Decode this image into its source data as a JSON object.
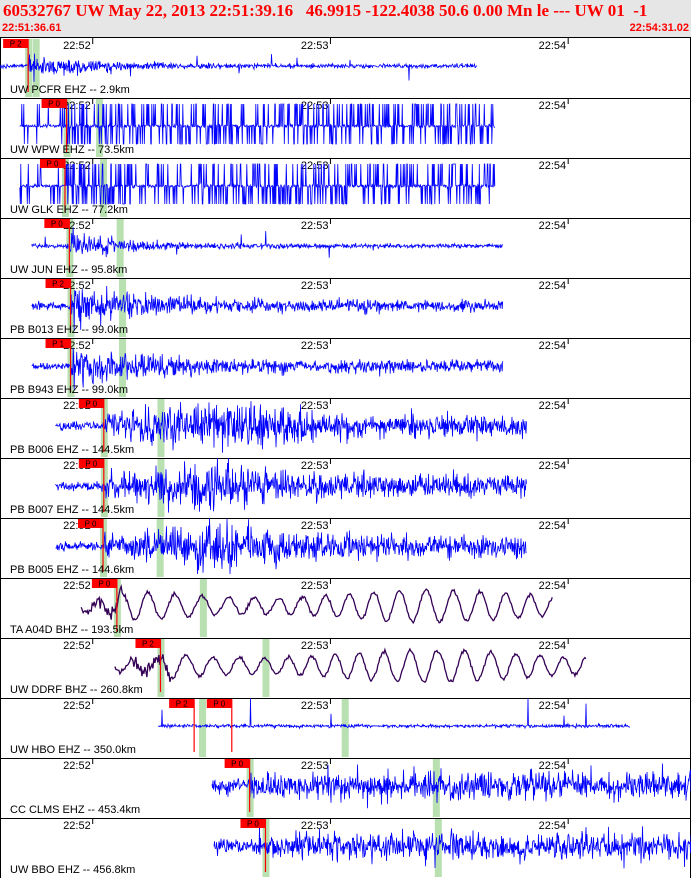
{
  "header": {
    "title": "60532767 UW May 22, 2013 22:51:39.16   46.9915 -122.4038 50.6 0.00 Mn le --- UW 01  -1",
    "start_time": "22:51:36.61",
    "end_time": "22:54:31.02"
  },
  "colors": {
    "header_text": "#ff0000",
    "trace_default": "#0000ff",
    "trace_broadband": "#330055",
    "pick": "#ff0000",
    "predicted": "#b8e0b0"
  },
  "chart_data": {
    "type": "line",
    "title": "60532767 UW May 22, 2013 22:51:39.16   46.9915 -122.4038 50.6 0.00 Mn le --- UW 01  -1",
    "x_range_seconds": [
      0,
      174.4
    ],
    "time_ticks": [
      {
        "label": "22:52",
        "t": 23.4
      },
      {
        "label": "22:53",
        "t": 83.4
      },
      {
        "label": "22:54",
        "t": 143.4
      }
    ],
    "series": [
      {
        "name": "UW PCFR EHZ -- 2.9km",
        "trace_start": 0,
        "trace_end": 120.5,
        "p": 7.1,
        "s": 9.0,
        "pick_labels": [
          "P 2"
        ],
        "style": "spiky",
        "seed": 11
      },
      {
        "name": "UW WPW EHZ -- 73.5km",
        "trace_start": 5,
        "trace_end": 125,
        "p": 16.8,
        "s": 25.0,
        "pick_labels": [
          "P 0"
        ],
        "style": "clipped",
        "seed": 23
      },
      {
        "name": "UW GLK EHZ -- 77.2km",
        "trace_start": 5,
        "trace_end": 125,
        "p": 16.4,
        "s": 26.0,
        "pick_labels": [
          "P 0"
        ],
        "style": "clipped",
        "seed": 37
      },
      {
        "name": "UW JUN EHZ -- 95.8km",
        "trace_start": 8,
        "trace_end": 127,
        "p": 17.5,
        "s": 30.2,
        "pick_labels": [
          "P 0"
        ],
        "style": "spiky",
        "seed": 41
      },
      {
        "name": "PB B013 EHZ -- 99.0km",
        "trace_start": 8,
        "trace_end": 127,
        "p": 17.8,
        "s": 30.8,
        "pick_labels": [
          "P 2"
        ],
        "style": "burst",
        "seed": 53
      },
      {
        "name": "PB B943 EHZ -- 99.0km",
        "trace_start": 8,
        "trace_end": 127,
        "p": 17.8,
        "s": 30.8,
        "pick_labels": [
          "P 1"
        ],
        "style": "burst",
        "seed": 67
      },
      {
        "name": "PB B006 EHZ -- 144.5km",
        "trace_start": 14,
        "trace_end": 133,
        "p": 26.2,
        "s": 40.5,
        "pick_labels": [
          "P 0"
        ],
        "style": "noisy",
        "seed": 71
      },
      {
        "name": "PB B007 EHZ -- 144.5km",
        "trace_start": 14,
        "trace_end": 133,
        "p": 26.2,
        "s": 40.5,
        "pick_labels": [
          "P 0"
        ],
        "style": "noisy",
        "seed": 83
      },
      {
        "name": "PB B005 EHZ -- 144.6km",
        "trace_start": 14,
        "trace_end": 133,
        "p": 26.0,
        "s": 40.3,
        "pick_labels": [
          "P 0"
        ],
        "style": "noisy",
        "seed": 97
      },
      {
        "name": "TA A04D BHZ -- 193.5km",
        "trace_start": 20.5,
        "trace_end": 139.5,
        "p": 29.5,
        "s": 51.2,
        "pick_labels": [
          "P 0"
        ],
        "style": "wave",
        "seed": 101
      },
      {
        "name": "UW DDRF BHZ -- 260.8km",
        "trace_start": 29,
        "trace_end": 148,
        "p": 40.5,
        "s": 67.0,
        "pick_labels": [
          "P 2"
        ],
        "style": "wave",
        "seed": 113
      },
      {
        "name": "UW HBO EHZ -- 350.0km",
        "trace_start": 40,
        "trace_end": 159,
        "p": 51.0,
        "s": 87.0,
        "pick_labels": [
          "P 2",
          "P 0"
        ],
        "pick_times": [
          49.0,
          58.5
        ],
        "style": "quiet",
        "seed": 127
      },
      {
        "name": "CC CLMS EHZ -- 453.4km",
        "trace_start": 53.5,
        "trace_end": 174.4,
        "p": 63.0,
        "s": 110.0,
        "pick_labels": [
          "P 0"
        ],
        "style": "dense",
        "seed": 131
      },
      {
        "name": "UW BBO EHZ -- 456.8km",
        "trace_start": 54,
        "trace_end": 174.4,
        "p": 67.0,
        "s": 110.5,
        "pick_labels": [
          "P 0"
        ],
        "style": "dense",
        "seed": 139
      }
    ]
  }
}
